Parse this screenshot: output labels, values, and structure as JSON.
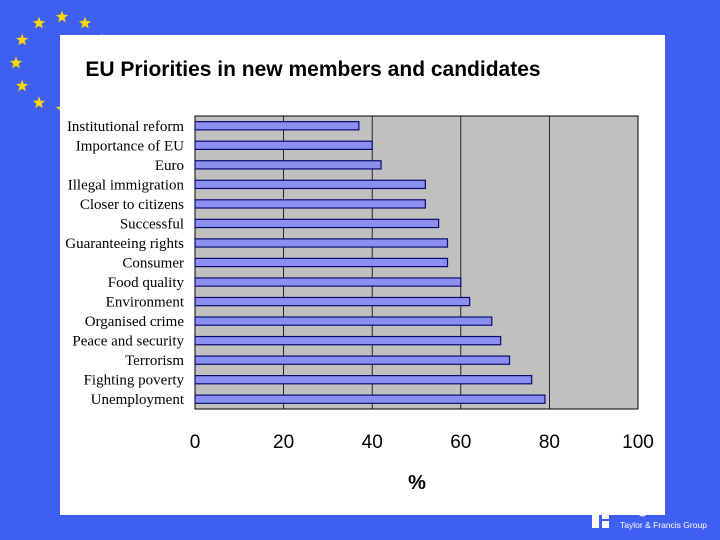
{
  "colors": {
    "background": "#3f5ff2",
    "card": "#ffffff",
    "plot_area": "#c0c0c0",
    "bar_fill": "#8b8ff0",
    "bar_stroke": "#0a0a6e",
    "star": "#ffd700"
  },
  "icons": {
    "eu_flag": "eu-stars-icon",
    "publisher_logo": "routledge-logo-icon"
  },
  "brand": {
    "name": "edge",
    "subtitle": "Taylor & Francis Group"
  },
  "chart_data": {
    "type": "bar",
    "orientation": "horizontal",
    "title": "EU Priorities in new members and candidates",
    "xlabel": "%",
    "ylabel": "",
    "xlim": [
      0,
      100
    ],
    "xticks": [
      0,
      20,
      40,
      60,
      80,
      100
    ],
    "grid": true,
    "legend": "none",
    "categories": [
      "Institutional reform",
      "Importance of EU",
      "Euro",
      "Illegal immigration",
      "Closer to citizens",
      "Successful",
      "Guaranteeing rights",
      "Consumer",
      "Food quality",
      "Environment",
      "Organised crime",
      "Peace and security",
      "Terrorism",
      "Fighting poverty",
      "Unemployment"
    ],
    "values": [
      37,
      40,
      42,
      52,
      52,
      55,
      57,
      57,
      60,
      62,
      67,
      69,
      71,
      76,
      79
    ]
  }
}
